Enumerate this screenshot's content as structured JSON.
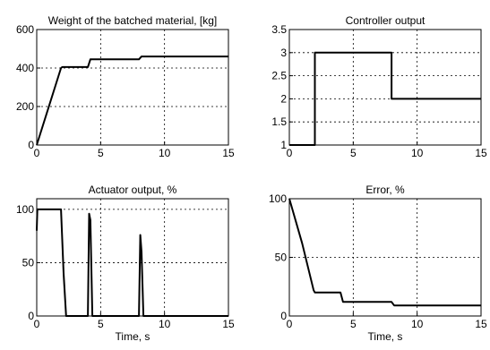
{
  "chart_data": [
    {
      "type": "line",
      "title": "Weight of the batched material, [kg]",
      "xlabel": "",
      "ylabel": "",
      "xlim": [
        0,
        15
      ],
      "ylim": [
        0,
        600
      ],
      "xticks": [
        0,
        5,
        10,
        15
      ],
      "yticks": [
        0,
        200,
        400,
        600
      ],
      "grid": true,
      "series": [
        {
          "x": [
            0,
            1.9,
            2.0,
            4.0,
            4.2,
            8.0,
            8.2,
            15
          ],
          "y": [
            0,
            400,
            405,
            405,
            445,
            445,
            460,
            460
          ]
        }
      ]
    },
    {
      "type": "line",
      "title": "Controller output",
      "xlabel": "",
      "ylabel": "",
      "xlim": [
        0,
        15
      ],
      "ylim": [
        1,
        3.5
      ],
      "xticks": [
        0,
        5,
        10,
        15
      ],
      "yticks": [
        1,
        1.5,
        2,
        2.5,
        3,
        3.5
      ],
      "grid": true,
      "series": [
        {
          "x": [
            0,
            2,
            2,
            8,
            8,
            15
          ],
          "y": [
            1,
            1,
            3,
            3,
            2,
            2
          ]
        }
      ]
    },
    {
      "type": "line",
      "title": "Actuator output, %",
      "xlabel": "Time, s",
      "ylabel": "",
      "xlim": [
        0,
        15
      ],
      "ylim": [
        0,
        110
      ],
      "xticks": [
        0,
        5,
        10,
        15
      ],
      "yticks": [
        0,
        50,
        100
      ],
      "grid": true,
      "series": [
        {
          "x": [
            0,
            0.05,
            0.2,
            1.9,
            2.1,
            2.3,
            4.0,
            4.1,
            4.2,
            4.35,
            8.0,
            8.1,
            8.2,
            8.35,
            10,
            15
          ],
          "y": [
            80,
            100,
            100,
            100,
            40,
            0,
            0,
            96,
            90,
            0,
            0,
            76,
            60,
            0,
            0,
            0
          ]
        }
      ]
    },
    {
      "type": "line",
      "title": "Error, %",
      "xlabel": "Time, s",
      "ylabel": "",
      "xlim": [
        0,
        15
      ],
      "ylim": [
        0,
        100
      ],
      "xticks": [
        0,
        5,
        10,
        15
      ],
      "yticks": [
        0,
        50,
        100
      ],
      "grid": true,
      "series": [
        {
          "x": [
            0,
            1,
            1.9,
            2.0,
            4.0,
            4.2,
            8.0,
            8.2,
            15
          ],
          "y": [
            100,
            62,
            22,
            20,
            20,
            12,
            12,
            9,
            9
          ]
        }
      ]
    }
  ]
}
